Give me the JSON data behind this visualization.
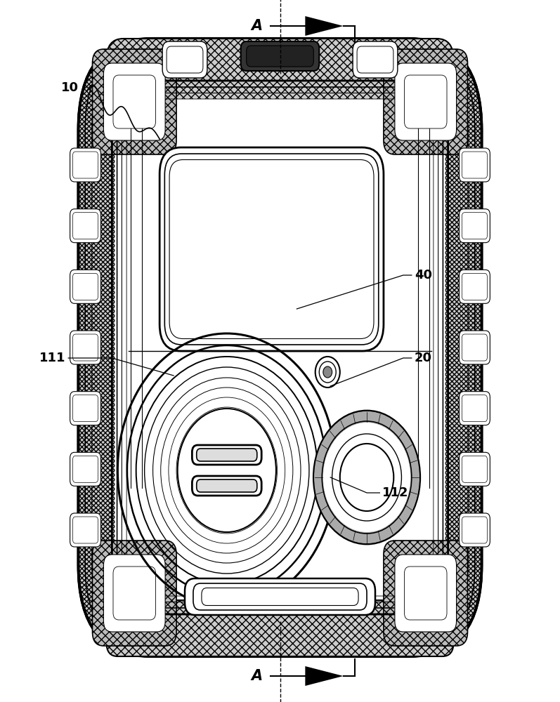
{
  "bg_color": "#ffffff",
  "fig_width": 7.97,
  "fig_height": 10.0,
  "dpi": 100,
  "lc": "#000000",
  "dcx": 0.5,
  "dcy": 0.505,
  "label_fontsize": 13,
  "A_fontsize": 15
}
